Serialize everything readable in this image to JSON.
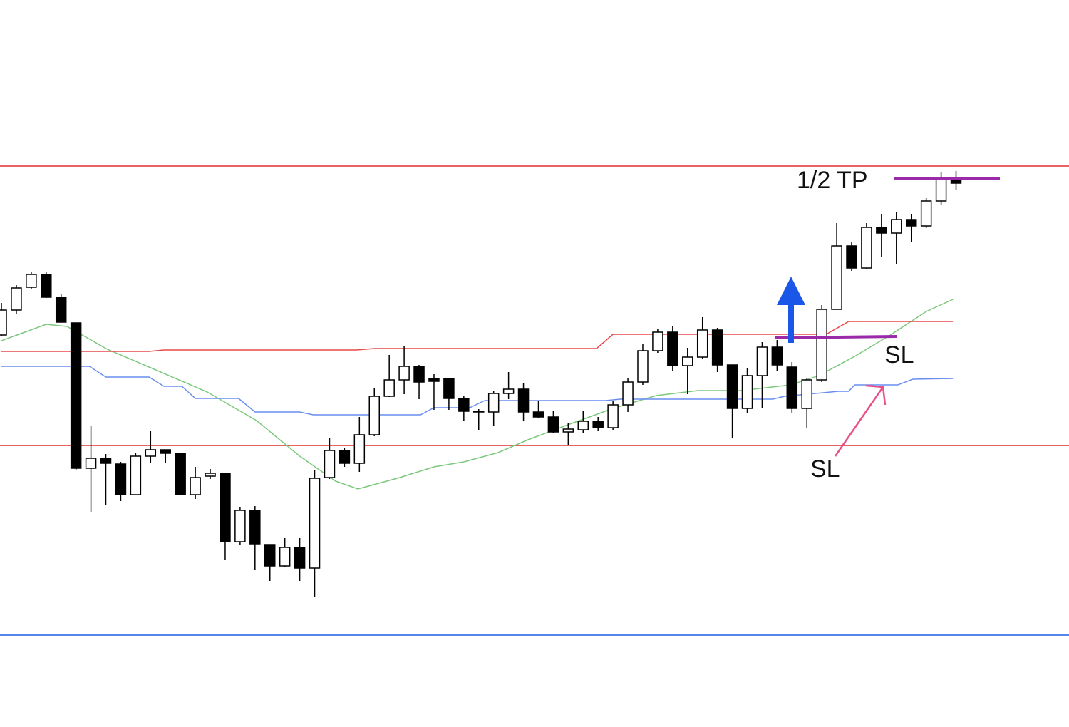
{
  "chart_data": {
    "type": "candlestick",
    "ylim": [
      0,
      1020
    ],
    "up_color": "#ffffff",
    "down_color": "#000000",
    "edge_color": "#000000",
    "candles": {
      "open": [
        550,
        585,
        617,
        635,
        603,
        567,
        363,
        377,
        369,
        326,
        380,
        389,
        384,
        326,
        352,
        356,
        260,
        304,
        256,
        226,
        252,
        223,
        350,
        388,
        370,
        410,
        464,
        487,
        506,
        489,
        489,
        461,
        443,
        442,
        468,
        474,
        442,
        435,
        414,
        417,
        429,
        420,
        452,
        484,
        528,
        554,
        507,
        519,
        557,
        508,
        447,
        493,
        533,
        505,
        447,
        487,
        586,
        675,
        644,
        701,
        693,
        712,
        703,
        738,
        769
      ],
      "high": [
        595,
        620,
        639,
        638,
        607,
        567,
        423,
        383,
        372,
        385,
        415,
        389,
        384,
        365,
        362,
        356,
        308,
        310,
        256,
        265,
        265,
        360,
        405,
        392,
        435,
        475,
        522,
        534,
        508,
        495,
        490,
        465,
        446,
        472,
        498,
        483,
        458,
        443,
        427,
        443,
        435,
        458,
        490,
        537,
        559,
        563,
        532,
        575,
        560,
        508,
        503,
        540,
        543,
        512,
        490,
        592,
        707,
        680,
        707,
        720,
        723,
        720,
        742,
        779,
        780
      ],
      "low": [
        548,
        580,
        615,
        602,
        568,
        360,
        302,
        312,
        317,
        326,
        370,
        370,
        326,
        320,
        348,
        235,
        255,
        220,
        205,
        225,
        205,
        183,
        348,
        365,
        358,
        408,
        463,
        467,
        460,
        445,
        445,
        430,
        417,
        423,
        460,
        430,
        433,
        412,
        395,
        413,
        415,
        417,
        442,
        480,
        525,
        500,
        467,
        517,
        498,
        406,
        440,
        447,
        500,
        440,
        420,
        484,
        586,
        640,
        642,
        660,
        650,
        680,
        700,
        732,
        754
      ],
      "close": [
        585,
        616,
        635,
        603,
        568,
        363,
        377,
        370,
        326,
        380,
        389,
        384,
        326,
        350,
        356,
        260,
        304,
        257,
        226,
        252,
        223,
        349,
        388,
        370,
        410,
        464,
        487,
        506,
        484,
        485,
        461,
        443,
        442,
        468,
        474,
        442,
        435,
        414,
        418,
        429,
        420,
        452,
        484,
        528,
        554,
        507,
        519,
        557,
        508,
        447,
        493,
        533,
        508,
        447,
        487,
        586,
        675,
        644,
        701,
        693,
        712,
        703,
        738,
        769,
        763
      ]
    },
    "lines": [
      {
        "color": "#7cc87c",
        "x": [
          0,
          3.0,
          4.4,
          7.1,
          9.9,
          13.8,
          17.1,
          20.0,
          22.4,
          23.9,
          26.7,
          29.0,
          31.0,
          33.3,
          35.3,
          38.1,
          41.0,
          43.9,
          46.7,
          49.6,
          52.9,
          54.8,
          57.2,
          59.6,
          62.0,
          63.8
        ],
        "values": [
          542,
          565,
          562,
          530,
          505,
          470,
          430,
          380,
          345,
          334,
          350,
          365,
          372,
          385,
          403,
          425,
          447,
          465,
          472,
          472,
          480,
          493,
          520,
          550,
          583,
          600
        ]
      },
      {
        "color": "#e84848",
        "x": [
          0,
          9.9,
          10.9,
          23.8,
          25.0,
          39.9,
          41.0,
          55.3,
          56.8,
          63.8
        ],
        "values": [
          527,
          527,
          529,
          529,
          531,
          531,
          551,
          551,
          569,
          569
        ]
      },
      {
        "color": "#6a8ef0",
        "x": [
          0,
          5.9,
          7.0,
          9.9,
          10.9,
          12.1,
          13.0,
          15.9,
          17.0,
          20.0,
          20.9,
          28.1,
          29.0,
          31.4,
          32.4,
          40.5,
          41.5,
          51.7,
          52.5,
          56.1,
          56.8,
          57.2,
          60.1,
          61.1,
          63.8
        ],
        "values": [
          506,
          506,
          491,
          491,
          478,
          478,
          461,
          461,
          442,
          442,
          438,
          438,
          448,
          448,
          458,
          458,
          460,
          460,
          464,
          471,
          471,
          480,
          480,
          488,
          489
        ]
      }
    ],
    "hlines": [
      {
        "value": 787,
        "color": "#e03030"
      },
      {
        "value": 395,
        "color": "#e03030"
      },
      {
        "value": 129,
        "color": "#1a5ee0"
      }
    ],
    "annotations": [
      {
        "text": "1/2 TP"
      },
      {
        "text": "SL"
      },
      {
        "text": "SL"
      }
    ]
  }
}
